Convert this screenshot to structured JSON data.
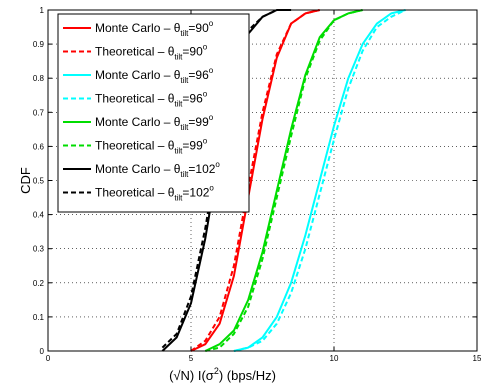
{
  "chart_data": {
    "type": "line",
    "xlabel": "(√N) I(σ²) (bps/Hz)",
    "xlabel_parts": {
      "prefix": "(√N) I(σ",
      "sup": "2",
      "suffix": ") (bps/Hz)"
    },
    "ylabel": "CDF",
    "xlim": [
      0,
      15
    ],
    "ylim": [
      0,
      1
    ],
    "xticks": [
      "0",
      "5",
      "10",
      "15"
    ],
    "yticks": [
      "0",
      "0.1",
      "0.2",
      "0.3",
      "0.4",
      "0.5",
      "0.6",
      "0.7",
      "0.8",
      "0.9",
      "1"
    ],
    "grid": true,
    "legend_placement": "top-left",
    "series": [
      {
        "name": "Monte Carlo – θtilt=90°",
        "label_main": "Monte Carlo – θ",
        "label_sub": "tilt",
        "label_tail": "=90",
        "label_sup": "o",
        "color": "#ff0000",
        "dash": "solid",
        "x": [
          5.0,
          5.5,
          6.0,
          6.5,
          7.0,
          7.5,
          8.0,
          8.5,
          9.0,
          9.5
        ],
        "y": [
          0.0,
          0.02,
          0.08,
          0.22,
          0.45,
          0.68,
          0.86,
          0.96,
          0.99,
          1.0
        ]
      },
      {
        "name": "Theoretical – θtilt=90°",
        "label_main": "Theoretical – θ",
        "label_sub": "tilt",
        "label_tail": "=90",
        "label_sup": "o",
        "color": "#ff0000",
        "dash": "dashed",
        "x": [
          5.0,
          5.5,
          6.0,
          6.5,
          7.0,
          7.5,
          8.0,
          8.5,
          9.0,
          9.5
        ],
        "y": [
          0.0,
          0.03,
          0.1,
          0.25,
          0.48,
          0.7,
          0.87,
          0.96,
          0.99,
          1.0
        ]
      },
      {
        "name": "Monte Carlo – θtilt=96°",
        "label_main": "Monte Carlo – θ",
        "label_sub": "tilt",
        "label_tail": "=96",
        "label_sup": "o",
        "color": "#00ffff",
        "dash": "solid",
        "x": [
          6.5,
          7.0,
          7.5,
          8.0,
          8.5,
          9.0,
          9.5,
          10.0,
          10.5,
          11.0,
          11.5,
          12.0,
          12.5
        ],
        "y": [
          0.0,
          0.01,
          0.04,
          0.1,
          0.2,
          0.34,
          0.5,
          0.66,
          0.8,
          0.9,
          0.96,
          0.99,
          1.0
        ]
      },
      {
        "name": "Theoretical – θtilt=96°",
        "label_main": "Theoretical – θ",
        "label_sub": "tilt",
        "label_tail": "=96",
        "label_sup": "o",
        "color": "#00ffff",
        "dash": "dashed",
        "x": [
          6.5,
          7.0,
          7.5,
          8.0,
          8.5,
          9.0,
          9.5,
          10.0,
          10.5,
          11.0,
          11.5,
          12.0,
          12.5
        ],
        "y": [
          0.0,
          0.01,
          0.03,
          0.08,
          0.17,
          0.3,
          0.46,
          0.62,
          0.77,
          0.88,
          0.95,
          0.98,
          1.0
        ]
      },
      {
        "name": "Monte Carlo – θtilt=99°",
        "label_main": "Monte Carlo – θ",
        "label_sub": "tilt",
        "label_tail": "=99",
        "label_sup": "o",
        "color": "#00dd00",
        "dash": "solid",
        "x": [
          5.5,
          6.0,
          6.5,
          7.0,
          7.5,
          8.0,
          8.5,
          9.0,
          9.5,
          10.0,
          10.5,
          11.0
        ],
        "y": [
          0.0,
          0.02,
          0.06,
          0.15,
          0.29,
          0.47,
          0.65,
          0.81,
          0.92,
          0.97,
          0.99,
          1.0
        ]
      },
      {
        "name": "Theoretical – θtilt=99°",
        "label_main": "Theoretical – θ",
        "label_sub": "tilt",
        "label_tail": "=99",
        "label_sup": "o",
        "color": "#00dd00",
        "dash": "dashed",
        "x": [
          5.5,
          6.0,
          6.5,
          7.0,
          7.5,
          8.0,
          8.5,
          9.0,
          9.5,
          10.0,
          10.5,
          11.0
        ],
        "y": [
          0.0,
          0.01,
          0.05,
          0.13,
          0.27,
          0.45,
          0.63,
          0.8,
          0.91,
          0.97,
          0.99,
          1.0
        ]
      },
      {
        "name": "Monte Carlo – θtilt=102°",
        "label_main": "Monte Carlo – θ",
        "label_sub": "tilt",
        "label_tail": "=102",
        "label_sup": "o",
        "color": "#000000",
        "dash": "solid",
        "x": [
          4.0,
          4.5,
          5.0,
          5.5,
          6.0,
          6.5,
          7.0,
          7.5,
          8.0,
          8.5
        ],
        "y": [
          0.0,
          0.04,
          0.14,
          0.33,
          0.58,
          0.8,
          0.93,
          0.98,
          1.0,
          1.0
        ]
      },
      {
        "name": "Theoretical – θtilt=102°",
        "label_main": "Theoretical – θ",
        "label_sub": "tilt",
        "label_tail": "=102",
        "label_sup": "o",
        "color": "#000000",
        "dash": "dashed",
        "x": [
          4.0,
          4.5,
          5.0,
          5.5,
          6.0,
          6.5,
          7.0,
          7.5,
          8.0,
          8.5
        ],
        "y": [
          0.01,
          0.05,
          0.16,
          0.36,
          0.61,
          0.82,
          0.94,
          0.98,
          1.0,
          1.0
        ]
      }
    ]
  }
}
